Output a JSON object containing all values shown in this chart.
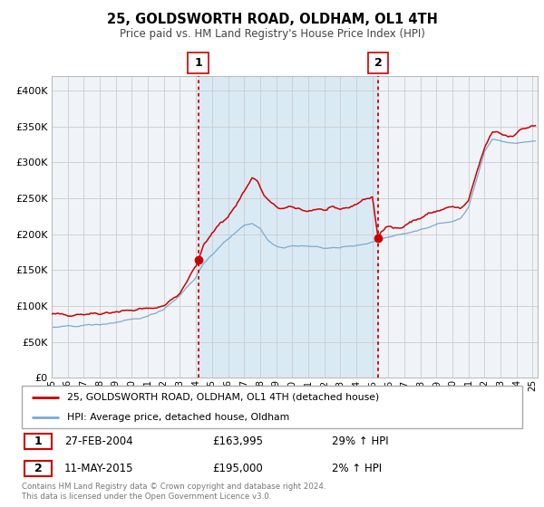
{
  "title": "25, GOLDSWORTH ROAD, OLDHAM, OL1 4TH",
  "subtitle": "Price paid vs. HM Land Registry's House Price Index (HPI)",
  "legend_line1": "25, GOLDSWORTH ROAD, OLDHAM, OL1 4TH (detached house)",
  "legend_line2": "HPI: Average price, detached house, Oldham",
  "footnote": "Contains HM Land Registry data © Crown copyright and database right 2024.\nThis data is licensed under the Open Government Licence v3.0.",
  "purchase1_label": "27-FEB-2004",
  "purchase1_price_str": "£163,995",
  "purchase1_hpi": "29% ↑ HPI",
  "purchase2_label": "11-MAY-2015",
  "purchase2_price_str": "£195,000",
  "purchase2_hpi": "2% ↑ HPI",
  "p1_t": 2004.1452,
  "p1_v": 163995,
  "p2_t": 2015.3589,
  "p2_v": 195000,
  "red_color": "#cc0000",
  "blue_color": "#7aabcf",
  "shade_color": "#daeaf5",
  "grid_color": "#cccccc",
  "bg_color": "#f0f4f8",
  "ylim": [
    0,
    420000
  ],
  "yticks": [
    0,
    50000,
    100000,
    150000,
    200000,
    250000,
    300000,
    350000,
    400000
  ],
  "xlim_start": 1995.0,
  "xlim_end": 2025.3
}
